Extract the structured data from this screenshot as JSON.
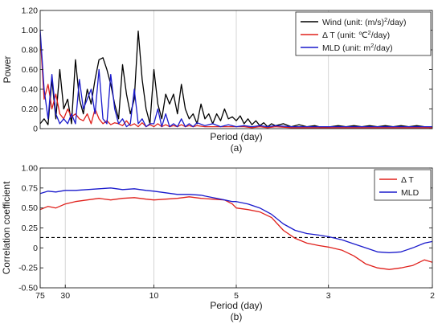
{
  "chart_data": [
    {
      "type": "line",
      "panel_label": "(a)",
      "xlabel": "Period (day)",
      "ylabel": "Power",
      "ylim": [
        0,
        1.2
      ],
      "yticks": [
        "0",
        "0.20",
        "0.40",
        "0.60",
        "0.80",
        "1.00",
        "1.20"
      ],
      "ytick_values": [
        0,
        0.2,
        0.4,
        0.6,
        0.8,
        1.0,
        1.2
      ],
      "xlim": [
        0,
        1
      ],
      "grid_x": [
        0.29,
        0.5,
        0.735
      ],
      "legend": "top-right",
      "series": [
        {
          "name": "Wind (unit: (m/s)",
          "name_sup": "2",
          "name_tail": "/day)",
          "color": "#000000",
          "x": [
            0,
            0.01,
            0.02,
            0.03,
            0.04,
            0.05,
            0.06,
            0.07,
            0.08,
            0.09,
            0.1,
            0.11,
            0.12,
            0.13,
            0.14,
            0.15,
            0.16,
            0.17,
            0.18,
            0.19,
            0.2,
            0.21,
            0.22,
            0.23,
            0.24,
            0.25,
            0.26,
            0.27,
            0.28,
            0.29,
            0.3,
            0.31,
            0.32,
            0.33,
            0.34,
            0.35,
            0.36,
            0.37,
            0.38,
            0.39,
            0.4,
            0.41,
            0.42,
            0.43,
            0.44,
            0.45,
            0.46,
            0.47,
            0.48,
            0.49,
            0.5,
            0.51,
            0.52,
            0.53,
            0.54,
            0.55,
            0.56,
            0.57,
            0.58,
            0.59,
            0.6,
            0.62,
            0.64,
            0.66,
            0.68,
            0.7,
            0.72,
            0.74,
            0.76,
            0.78,
            0.8,
            0.82,
            0.84,
            0.86,
            0.88,
            0.9,
            0.92,
            0.94,
            0.96,
            0.98,
            1.0
          ],
          "values": [
            0.05,
            0.1,
            0.04,
            0.5,
            0.1,
            0.6,
            0.2,
            0.3,
            0.05,
            0.7,
            0.3,
            0.15,
            0.4,
            0.25,
            0.5,
            0.7,
            0.72,
            0.6,
            0.45,
            0.25,
            0.1,
            0.65,
            0.35,
            0.15,
            0.3,
            0.99,
            0.5,
            0.2,
            0.05,
            0.6,
            0.25,
            0.1,
            0.35,
            0.25,
            0.35,
            0.15,
            0.45,
            0.2,
            0.1,
            0.15,
            0.05,
            0.25,
            0.1,
            0.15,
            0.05,
            0.15,
            0.08,
            0.2,
            0.1,
            0.12,
            0.08,
            0.13,
            0.05,
            0.1,
            0.04,
            0.08,
            0.03,
            0.06,
            0.02,
            0.05,
            0.03,
            0.05,
            0.02,
            0.04,
            0.02,
            0.03,
            0.01,
            0.02,
            0.03,
            0.02,
            0.03,
            0.02,
            0.03,
            0.02,
            0.03,
            0.02,
            0.03,
            0.02,
            0.03,
            0.02,
            0.02
          ]
        },
        {
          "name": "Δ T (unit: ℃",
          "name_sup": "2",
          "name_tail": "/day)",
          "color": "#e0201b",
          "x": [
            0,
            0.01,
            0.02,
            0.03,
            0.04,
            0.05,
            0.06,
            0.07,
            0.08,
            0.09,
            0.1,
            0.11,
            0.12,
            0.13,
            0.14,
            0.15,
            0.16,
            0.17,
            0.18,
            0.19,
            0.2,
            0.21,
            0.22,
            0.23,
            0.24,
            0.25,
            0.26,
            0.27,
            0.28,
            0.29,
            0.3,
            0.31,
            0.32,
            0.33,
            0.34,
            0.35,
            0.36,
            0.37,
            0.38,
            0.39,
            0.4,
            0.42,
            0.44,
            0.46,
            0.48,
            0.5,
            0.52,
            0.54,
            0.56,
            0.58,
            0.6,
            0.64,
            0.68,
            0.72,
            0.76,
            0.8,
            0.85,
            0.9,
            0.95,
            1.0
          ],
          "values": [
            0.95,
            0.3,
            0.45,
            0.2,
            0.35,
            0.15,
            0.1,
            0.2,
            0.12,
            0.15,
            0.1,
            0.08,
            0.15,
            0.05,
            0.2,
            0.1,
            0.05,
            0.08,
            0.04,
            0.06,
            0.05,
            0.03,
            0.08,
            0.03,
            0.05,
            0.02,
            0.06,
            0.02,
            0.04,
            0.02,
            0.05,
            0.02,
            0.04,
            0.02,
            0.03,
            0.02,
            0.04,
            0.02,
            0.03,
            0.02,
            0.03,
            0.02,
            0.02,
            0.02,
            0.02,
            0.02,
            0.02,
            0.01,
            0.02,
            0.01,
            0.02,
            0.01,
            0.01,
            0.01,
            0.01,
            0.01,
            0.01,
            0.01,
            0.01,
            0.01
          ]
        },
        {
          "name": "MLD (unit: m",
          "name_sup": "2",
          "name_tail": "/day)",
          "color": "#1a1acc",
          "x": [
            0,
            0.01,
            0.02,
            0.03,
            0.04,
            0.05,
            0.06,
            0.07,
            0.08,
            0.09,
            0.1,
            0.11,
            0.12,
            0.13,
            0.14,
            0.15,
            0.16,
            0.17,
            0.18,
            0.19,
            0.2,
            0.21,
            0.22,
            0.23,
            0.24,
            0.25,
            0.26,
            0.27,
            0.28,
            0.29,
            0.3,
            0.31,
            0.32,
            0.33,
            0.34,
            0.35,
            0.36,
            0.37,
            0.38,
            0.39,
            0.4,
            0.42,
            0.44,
            0.46,
            0.48,
            0.5,
            0.52,
            0.54,
            0.56,
            0.58,
            0.6,
            0.64,
            0.68,
            0.72,
            0.76,
            0.8,
            0.85,
            0.9,
            0.95,
            1.0
          ],
          "values": [
            1.0,
            0.4,
            0.1,
            0.55,
            0.15,
            0.05,
            0.1,
            0.05,
            0.15,
            0.05,
            0.5,
            0.2,
            0.3,
            0.4,
            0.15,
            0.6,
            0.1,
            0.05,
            0.55,
            0.2,
            0.05,
            0.1,
            0.02,
            0.05,
            0.4,
            0.05,
            0.1,
            0.02,
            0.05,
            0.05,
            0.2,
            0.02,
            0.15,
            0.02,
            0.05,
            0.02,
            0.1,
            0.02,
            0.05,
            0.02,
            0.06,
            0.03,
            0.05,
            0.02,
            0.04,
            0.02,
            0.03,
            0.02,
            0.03,
            0.02,
            0.03,
            0.02,
            0.02,
            0.02,
            0.02,
            0.02,
            0.02,
            0.02,
            0.02,
            0.02
          ]
        }
      ]
    },
    {
      "type": "line",
      "panel_label": "(b)",
      "xlabel": "Period (day)",
      "ylabel": "Correlation coefficient",
      "ylim": [
        -0.5,
        1.0
      ],
      "yticks": [
        "-0.50",
        "-0.25",
        "0",
        "0.25",
        "0.50",
        "0.75",
        "1.00"
      ],
      "ytick_values": [
        -0.5,
        -0.25,
        0,
        0.25,
        0.5,
        0.75,
        1.0
      ],
      "xticks": [
        "75",
        "30",
        "10",
        "5",
        "3",
        "2"
      ],
      "xtick_positions": [
        0.0,
        0.064,
        0.29,
        0.5,
        0.735,
        1.0
      ],
      "grid_x": [
        0.064,
        0.29,
        0.5,
        0.735
      ],
      "reference_line": 0.13,
      "legend": "top-right",
      "series": [
        {
          "name": "Δ T",
          "color": "#e0201b",
          "x": [
            0,
            0.02,
            0.04,
            0.064,
            0.09,
            0.12,
            0.15,
            0.18,
            0.21,
            0.24,
            0.27,
            0.29,
            0.32,
            0.35,
            0.38,
            0.41,
            0.44,
            0.47,
            0.49,
            0.5,
            0.53,
            0.56,
            0.59,
            0.62,
            0.65,
            0.68,
            0.71,
            0.735,
            0.77,
            0.8,
            0.83,
            0.86,
            0.89,
            0.92,
            0.95,
            0.98,
            1.0
          ],
          "values": [
            0.48,
            0.52,
            0.5,
            0.55,
            0.58,
            0.6,
            0.62,
            0.6,
            0.62,
            0.63,
            0.61,
            0.6,
            0.61,
            0.62,
            0.64,
            0.62,
            0.61,
            0.6,
            0.55,
            0.5,
            0.48,
            0.45,
            0.38,
            0.22,
            0.12,
            0.06,
            0.03,
            0.01,
            -0.03,
            -0.1,
            -0.2,
            -0.25,
            -0.27,
            -0.25,
            -0.22,
            -0.15,
            -0.18
          ]
        },
        {
          "name": "MLD",
          "color": "#1a1acc",
          "x": [
            0,
            0.02,
            0.04,
            0.064,
            0.09,
            0.12,
            0.15,
            0.18,
            0.21,
            0.24,
            0.27,
            0.29,
            0.32,
            0.35,
            0.38,
            0.41,
            0.44,
            0.47,
            0.49,
            0.5,
            0.53,
            0.56,
            0.59,
            0.62,
            0.65,
            0.68,
            0.71,
            0.735,
            0.77,
            0.8,
            0.83,
            0.86,
            0.89,
            0.92,
            0.95,
            0.98,
            1.0
          ],
          "values": [
            0.68,
            0.71,
            0.7,
            0.72,
            0.72,
            0.73,
            0.74,
            0.75,
            0.73,
            0.74,
            0.72,
            0.71,
            0.69,
            0.67,
            0.67,
            0.66,
            0.63,
            0.6,
            0.58,
            0.58,
            0.55,
            0.5,
            0.42,
            0.3,
            0.22,
            0.18,
            0.16,
            0.14,
            0.1,
            0.05,
            0.0,
            -0.05,
            -0.06,
            -0.05,
            0.0,
            0.06,
            0.08
          ]
        }
      ]
    }
  ]
}
